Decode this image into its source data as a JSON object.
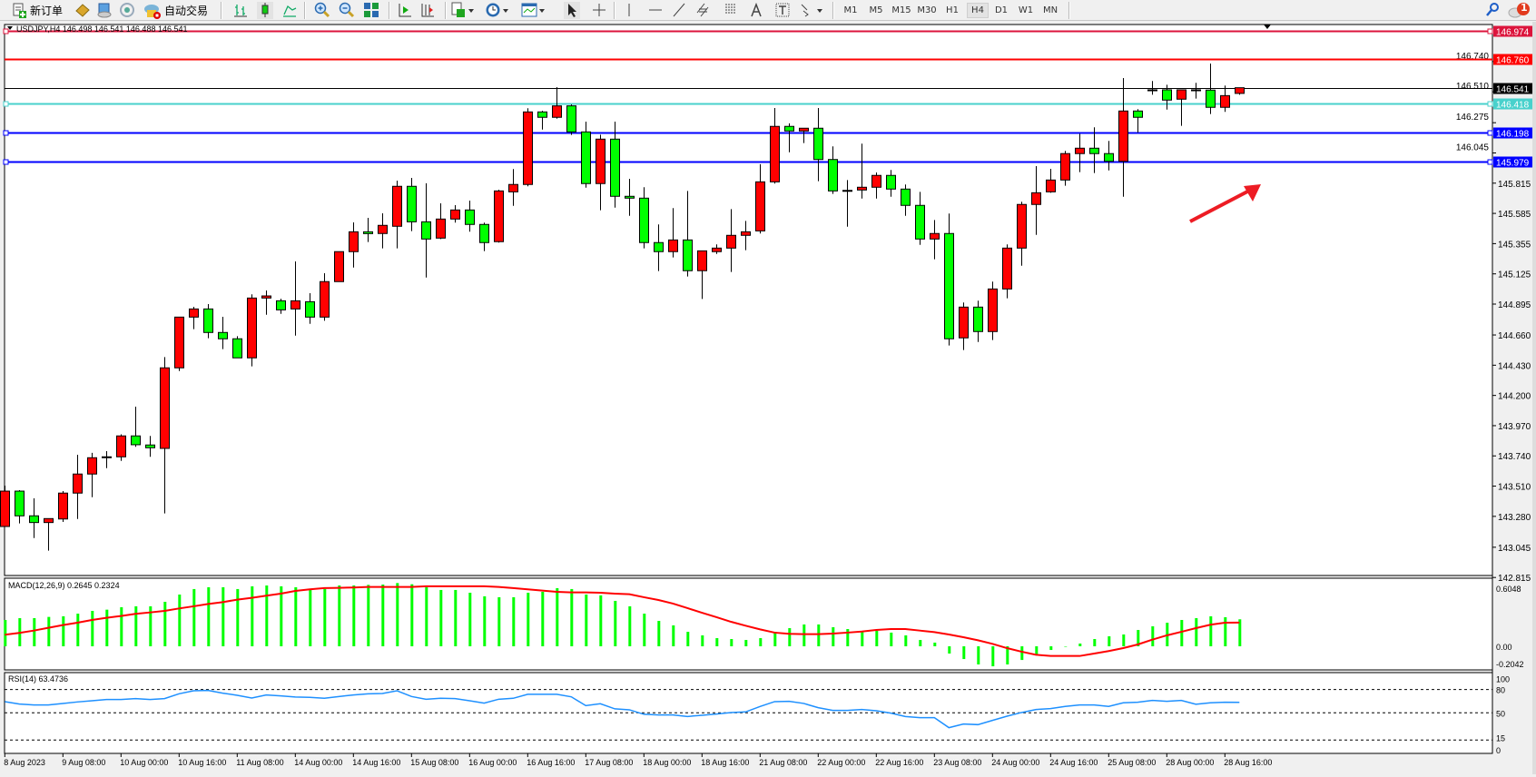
{
  "toolbar": {
    "new_order_label": "新订单",
    "auto_trading_label": "自动交易",
    "icons": [
      "new-order-icon",
      "market-watch-icon",
      "navigator-icon",
      "signals-icon",
      "auto-trading-icon",
      "bar-chart-icon",
      "candlestick-icon",
      "line-chart-icon",
      "zoom-in-icon",
      "zoom-out-icon",
      "tile-windows-icon",
      "auto-scroll-icon",
      "chart-shift-icon",
      "indicators-icon",
      "periods-icon",
      "templates-icon",
      "cursor-icon",
      "crosshair-icon",
      "vertical-line-icon",
      "horizontal-line-icon",
      "trend-line-icon",
      "equidistant-channel-icon",
      "fibonacci-icon",
      "text-icon",
      "text-label-icon",
      "arrows-icon",
      "search-icon",
      "notification-icon"
    ],
    "timeframes": [
      "M1",
      "M5",
      "M15",
      "M30",
      "H1",
      "H4",
      "D1",
      "W1",
      "MN"
    ],
    "active_timeframe": "H4",
    "notification_count": "1"
  },
  "chart": {
    "title": "USDJPY,H4  146.498 146.541 146.488 146.541",
    "colors": {
      "bull": "#ff0000",
      "bear": "#00ff00",
      "wick": "#000000",
      "macd_hist": "#00ff00",
      "macd_signal": "#ff0000",
      "rsi": "#1e90ff"
    }
  },
  "chart_data": [
    {
      "type": "candlestick",
      "symbol": "USDJPY",
      "timeframe": "H4",
      "ohlc_legend": "146.498 146.541 146.488 146.541",
      "ylim": [
        142.815,
        146.974
      ],
      "y_ticks": [
        "146.740",
        "146.510",
        "146.275",
        "146.045",
        "145.815",
        "145.585",
        "145.355",
        "145.125",
        "144.895",
        "144.660",
        "144.430",
        "144.200",
        "143.970",
        "143.740",
        "143.510",
        "143.280",
        "143.045",
        "142.815"
      ],
      "x_tick_labels": [
        "8 Aug 2023",
        "9 Aug 08:00",
        "10 Aug 00:00",
        "10 Aug 16:00",
        "11 Aug 08:00",
        "14 Aug 00:00",
        "14 Aug 16:00",
        "15 Aug 08:00",
        "16 Aug 00:00",
        "16 Aug 16:00",
        "17 Aug 08:00",
        "18 Aug 00:00",
        "18 Aug 16:00",
        "21 Aug 08:00",
        "22 Aug 00:00",
        "22 Aug 16:00",
        "23 Aug 08:00",
        "24 Aug 00:00",
        "24 Aug 16:00",
        "25 Aug 08:00",
        "28 Aug 00:00",
        "28 Aug 16:00"
      ],
      "x_tick_every_bars": 4,
      "ohlc": [
        [
          143.203,
          143.514,
          143.203,
          143.472
        ],
        [
          143.472,
          143.479,
          143.226,
          143.284
        ],
        [
          143.284,
          143.417,
          143.115,
          143.233
        ],
        [
          143.233,
          143.263,
          143.019,
          143.263
        ],
        [
          143.26,
          143.472,
          143.238,
          143.457
        ],
        [
          143.457,
          143.749,
          143.26,
          143.602
        ],
        [
          143.602,
          143.763,
          143.426,
          143.726
        ],
        [
          143.733,
          143.776,
          143.647,
          143.733
        ],
        [
          143.733,
          143.904,
          143.702,
          143.892
        ],
        [
          143.892,
          144.115,
          143.809,
          143.825
        ],
        [
          143.823,
          143.892,
          143.733,
          143.802
        ],
        [
          143.797,
          144.492,
          143.302,
          144.41
        ],
        [
          144.41,
          144.796,
          144.386,
          144.796
        ],
        [
          144.796,
          144.874,
          144.704,
          144.858
        ],
        [
          144.858,
          144.895,
          144.635,
          144.679
        ],
        [
          144.679,
          144.798,
          144.552,
          144.631
        ],
        [
          144.631,
          144.651,
          144.486,
          144.486
        ],
        [
          144.486,
          144.969,
          144.421,
          144.941
        ],
        [
          144.941,
          144.999,
          144.814,
          144.957
        ],
        [
          144.92,
          144.936,
          144.821,
          144.851
        ],
        [
          144.858,
          145.22,
          144.655,
          144.92
        ],
        [
          144.913,
          144.978,
          144.745,
          144.796
        ],
        [
          144.796,
          145.13,
          144.768,
          145.066
        ],
        [
          145.066,
          145.294,
          145.066,
          145.294
        ],
        [
          145.294,
          145.517,
          145.173,
          145.445
        ],
        [
          145.445,
          145.551,
          145.367,
          145.431
        ],
        [
          145.432,
          145.586,
          145.319,
          145.494
        ],
        [
          145.487,
          145.834,
          145.319,
          145.791
        ],
        [
          145.791,
          145.855,
          145.45,
          145.521
        ],
        [
          145.521,
          145.814,
          145.097,
          145.39
        ],
        [
          145.397,
          145.662,
          145.39,
          145.542
        ],
        [
          145.542,
          145.648,
          145.515,
          145.611
        ],
        [
          145.611,
          145.682,
          145.446,
          145.501
        ],
        [
          145.501,
          145.515,
          145.298,
          145.363
        ],
        [
          145.37,
          145.765,
          145.363,
          145.756
        ],
        [
          145.749,
          145.922,
          145.643,
          145.805
        ],
        [
          145.805,
          146.385,
          145.791,
          146.357
        ],
        [
          146.357,
          146.366,
          146.223,
          146.316
        ],
        [
          146.316,
          146.546,
          146.306,
          146.403
        ],
        [
          146.403,
          146.414,
          146.182,
          146.205
        ],
        [
          146.205,
          146.283,
          145.781,
          145.812
        ],
        [
          145.812,
          146.184,
          145.609,
          146.15
        ],
        [
          146.15,
          146.283,
          145.629,
          145.715
        ],
        [
          145.715,
          145.848,
          145.567,
          145.701
        ],
        [
          145.701,
          145.784,
          145.319,
          145.363
        ],
        [
          145.363,
          145.501,
          145.146,
          145.294
        ],
        [
          145.294,
          145.625,
          145.25,
          145.383
        ],
        [
          145.383,
          145.756,
          145.105,
          145.149
        ],
        [
          145.149,
          145.3,
          144.934,
          145.3
        ],
        [
          145.294,
          145.349,
          145.277,
          145.321
        ],
        [
          145.321,
          145.618,
          145.139,
          145.418
        ],
        [
          145.418,
          145.528,
          145.305,
          145.445
        ],
        [
          145.452,
          145.959,
          145.432,
          145.825
        ],
        [
          145.825,
          146.387,
          145.812,
          146.247
        ],
        [
          146.247,
          146.27,
          146.05,
          146.212
        ],
        [
          146.212,
          146.233,
          146.12,
          146.233
        ],
        [
          146.233,
          146.387,
          145.83,
          145.995
        ],
        [
          145.995,
          146.095,
          145.733,
          145.756
        ],
        [
          145.76,
          145.839,
          145.484,
          145.76
        ],
        [
          145.763,
          146.116,
          145.698,
          145.784
        ],
        [
          145.784,
          145.896,
          145.698,
          145.874
        ],
        [
          145.874,
          145.915,
          145.712,
          145.77
        ],
        [
          145.77,
          145.805,
          145.567,
          145.646
        ],
        [
          145.646,
          145.749,
          145.346,
          145.39
        ],
        [
          145.39,
          145.535,
          145.236,
          145.432
        ],
        [
          145.432,
          145.584,
          144.58,
          144.631
        ],
        [
          144.638,
          144.907,
          144.545,
          144.872
        ],
        [
          144.872,
          144.921,
          144.607,
          144.686
        ],
        [
          144.686,
          145.066,
          144.621,
          145.01
        ],
        [
          145.01,
          145.349,
          144.939,
          145.321
        ],
        [
          145.321,
          145.674,
          145.187,
          145.653
        ],
        [
          145.653,
          145.945,
          145.422,
          145.742
        ],
        [
          145.749,
          145.924,
          145.742,
          145.839
        ],
        [
          145.839,
          146.06,
          145.795,
          146.04
        ],
        [
          146.04,
          146.191,
          145.899,
          146.081
        ],
        [
          146.081,
          146.24,
          145.892,
          146.04
        ],
        [
          146.04,
          146.136,
          145.912,
          145.981
        ],
        [
          145.981,
          146.615,
          145.712,
          146.364
        ],
        [
          146.364,
          146.378,
          146.2,
          146.316
        ],
        [
          146.525,
          146.592,
          146.488,
          146.525
        ],
        [
          146.525,
          146.564,
          146.375,
          146.447
        ],
        [
          146.454,
          146.525,
          146.251,
          146.525
        ],
        [
          146.525,
          146.578,
          146.458,
          146.525
        ],
        [
          146.523,
          146.725,
          146.341,
          146.392
        ],
        [
          146.392,
          146.558,
          146.357,
          146.481
        ],
        [
          146.498,
          146.541,
          146.488,
          146.541
        ]
      ],
      "horizontal_lines": [
        {
          "price": 146.974,
          "label": "146.974",
          "color": "#dc143c",
          "markers": true
        },
        {
          "price": 146.76,
          "label": "146.760",
          "color": "#ff0000",
          "markers": false
        },
        {
          "price": 146.541,
          "label": "146.541",
          "color": "#000000",
          "markers": false,
          "current_price": true
        },
        {
          "price": 146.418,
          "label": "146.418",
          "color": "#48d1cc",
          "markers": true
        },
        {
          "price": 146.198,
          "label": "146.198",
          "color": "#0000ff",
          "markers": true
        },
        {
          "price": 145.979,
          "label": "145.979",
          "color": "#0000ff",
          "markers": true
        }
      ],
      "annotations": [
        {
          "type": "arrow",
          "color": "#ed1c24",
          "direction": "up-right"
        }
      ]
    },
    {
      "type": "macd",
      "label": "MACD(12,26,9) 0.2645 0.2324",
      "ylim": [
        -0.2042,
        0.6048
      ],
      "y_ticks": [
        "0.6048",
        "0.00",
        "-0.2042"
      ],
      "histogram": [
        0.258,
        0.276,
        0.276,
        0.288,
        0.294,
        0.32,
        0.347,
        0.359,
        0.383,
        0.392,
        0.392,
        0.436,
        0.507,
        0.561,
        0.579,
        0.579,
        0.561,
        0.588,
        0.596,
        0.588,
        0.579,
        0.561,
        0.561,
        0.596,
        0.596,
        0.602,
        0.605,
        0.62,
        0.608,
        0.579,
        0.552,
        0.552,
        0.525,
        0.49,
        0.481,
        0.481,
        0.525,
        0.534,
        0.57,
        0.561,
        0.507,
        0.499,
        0.445,
        0.392,
        0.32,
        0.249,
        0.205,
        0.142,
        0.107,
        0.08,
        0.071,
        0.062,
        0.08,
        0.142,
        0.178,
        0.214,
        0.214,
        0.187,
        0.169,
        0.151,
        0.151,
        0.134,
        0.107,
        0.062,
        0.036,
        -0.071,
        -0.125,
        -0.178,
        -0.196,
        -0.178,
        -0.134,
        -0.089,
        -0.036,
        0.0,
        0.027,
        0.071,
        0.098,
        0.116,
        0.16,
        0.196,
        0.231,
        0.258,
        0.276,
        0.294,
        0.285,
        0.2645
      ],
      "signal": [
        0.113,
        0.131,
        0.154,
        0.181,
        0.208,
        0.231,
        0.258,
        0.279,
        0.297,
        0.318,
        0.332,
        0.347,
        0.371,
        0.392,
        0.415,
        0.433,
        0.457,
        0.475,
        0.496,
        0.516,
        0.543,
        0.558,
        0.57,
        0.573,
        0.576,
        0.582,
        0.582,
        0.582,
        0.582,
        0.588,
        0.588,
        0.588,
        0.588,
        0.588,
        0.582,
        0.57,
        0.558,
        0.546,
        0.534,
        0.528,
        0.528,
        0.525,
        0.516,
        0.51,
        0.481,
        0.454,
        0.419,
        0.374,
        0.329,
        0.285,
        0.24,
        0.202,
        0.166,
        0.134,
        0.122,
        0.119,
        0.119,
        0.125,
        0.134,
        0.145,
        0.16,
        0.169,
        0.169,
        0.154,
        0.139,
        0.116,
        0.089,
        0.059,
        0.024,
        -0.018,
        -0.053,
        -0.083,
        -0.095,
        -0.095,
        -0.095,
        -0.071,
        -0.047,
        -0.018,
        0.018,
        0.065,
        0.107,
        0.142,
        0.178,
        0.211,
        0.231,
        0.2324
      ]
    },
    {
      "type": "line",
      "label": "RSI(14) 63.4736",
      "ylim": [
        0,
        100
      ],
      "y_ticks": [
        "100",
        "80",
        "50",
        "15",
        "0"
      ],
      "levels": [
        80,
        50,
        15
      ],
      "values": [
        64.4,
        61.3,
        60.1,
        60.1,
        62.0,
        64.0,
        65.6,
        67.1,
        67.1,
        68.3,
        67.1,
        68.3,
        74.5,
        78.4,
        78.8,
        75.3,
        72.6,
        69.1,
        73.0,
        71.8,
        70.3,
        69.9,
        68.7,
        71.0,
        73.0,
        74.5,
        74.9,
        78.4,
        71.0,
        67.5,
        68.7,
        68.3,
        65.6,
        62.5,
        67.5,
        68.7,
        73.8,
        73.8,
        73.8,
        70.6,
        59.3,
        61.7,
        55.1,
        53.9,
        48.1,
        47.3,
        47.3,
        45.3,
        46.9,
        48.4,
        50.4,
        51.2,
        58.2,
        64.4,
        64.8,
        62.1,
        56.6,
        53.1,
        53.1,
        54.3,
        52.7,
        49.6,
        45.3,
        43.8,
        43.8,
        30.9,
        35.6,
        34.8,
        40.3,
        45.7,
        50.4,
        54.3,
        55.5,
        58.2,
        60.1,
        60.1,
        58.2,
        62.9,
        63.6,
        66.0,
        64.8,
        66.0,
        61.0,
        62.9,
        63.6,
        63.5
      ]
    }
  ]
}
